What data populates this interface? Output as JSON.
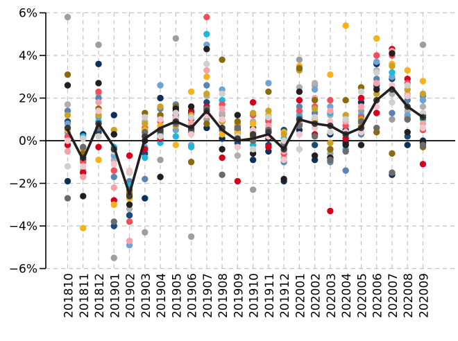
{
  "chart_data": {
    "type": "scatter",
    "title": "",
    "xlabel": "",
    "ylabel": "",
    "categories": [
      "201810",
      "201811",
      "201812",
      "201901",
      "201902",
      "201903",
      "201904",
      "201905",
      "201906",
      "201907",
      "201908",
      "201909",
      "201910",
      "201911",
      "201912",
      "202001",
      "202002",
      "202003",
      "202004",
      "202005",
      "202006",
      "202007",
      "202008",
      "202009"
    ],
    "ylim": [
      -6,
      6
    ],
    "yticks": [
      -6,
      -4,
      -2,
      0,
      2,
      4,
      6
    ],
    "ytick_labels": [
      "−6%",
      "−4%",
      "−2%",
      "0%",
      "2%",
      "4%",
      "6%"
    ],
    "grid": true,
    "mean_line": {
      "color": "#231f20",
      "values": [
        0.5,
        -0.9,
        0.8,
        -0.3,
        -2.5,
        0.1,
        0.6,
        0.9,
        0.6,
        1.4,
        0.5,
        0.0,
        0.1,
        0.3,
        -0.4,
        1.0,
        0.8,
        0.7,
        0.3,
        0.6,
        1.9,
        2.5,
        1.6,
        1.1
      ]
    },
    "point_series": [
      {
        "color": "#9e9e9e",
        "values": [
          5.8,
          -1.4,
          4.5,
          -5.5,
          -2.1,
          -4.3,
          -0.9,
          4.8,
          -4.5,
          1.0,
          1.2,
          0.4,
          -2.3,
          0.2,
          -0.3,
          3.8,
          2.6,
          -0.6,
          0.5,
          1.4,
          2.5,
          1.0,
          1.1,
          4.5
        ]
      },
      {
        "color": "#b0b0b0",
        "values": [
          1.7,
          -0.3,
          2.2,
          -0.9,
          -3.2,
          0.9,
          1.1,
          0.2,
          0.7,
          2.1,
          1.3,
          -0.7,
          0.9,
          0.6,
          -0.8,
          2.5,
          2.7,
          1.2,
          0.2,
          0.9,
          3.3,
          2.2,
          1.4,
          1.6
        ]
      },
      {
        "color": "#0d2f5c",
        "values": [
          -1.9,
          0.3,
          3.6,
          1.2,
          -2.0,
          -2.7,
          2.0,
          1.4,
          1.3,
          0.6,
          0.1,
          0.5,
          -0.9,
          -0.5,
          -1.9,
          0.5,
          -0.9,
          0.3,
          -0.1,
          1.8,
          3.6,
          -1.6,
          -0.2,
          0.0
        ]
      },
      {
        "color": "#1a4a7a",
        "values": [
          0.9,
          -0.9,
          0.4,
          -4.0,
          -3.5,
          -0.6,
          0.4,
          1.0,
          0.5,
          1.8,
          0.9,
          -0.1,
          0.6,
          -0.2,
          0.5,
          0.8,
          -0.2,
          -0.4,
          0.5,
          0.6,
          2.6,
          2.9,
          0.2,
          1.2
        ]
      },
      {
        "color": "#5b85b0",
        "values": [
          1.4,
          0.1,
          2.0,
          -1.7,
          -1.9,
          -1.8,
          1.5,
          1.7,
          0.8,
          2.6,
          0.5,
          0.3,
          0.2,
          1.0,
          -1.0,
          1.6,
          1.3,
          -1.0,
          -1.4,
          0.3,
          2.9,
          1.3,
          1.9,
          2.1
        ]
      },
      {
        "color": "#6fa3d4",
        "values": [
          0.8,
          -0.6,
          1.1,
          -0.7,
          -4.9,
          -0.3,
          2.6,
          0.5,
          -0.2,
          4.5,
          2.4,
          0.6,
          0.0,
          2.7,
          -0.5,
          1.2,
          2.4,
          1.6,
          0.3,
          1.2,
          3.7,
          3.0,
          1.2,
          1.9
        ]
      },
      {
        "color": "#1fb8d8",
        "values": [
          0.4,
          0.2,
          0.9,
          -0.3,
          -2.1,
          -0.8,
          -0.1,
          0.2,
          -0.3,
          5.0,
          1.9,
          0.1,
          -0.2,
          0.4,
          0.1,
          1.1,
          0.9,
          1.3,
          -0.4,
          0.8,
          4.8,
          3.2,
          1.0,
          1.0
        ]
      },
      {
        "color": "#d6001c",
        "values": [
          -0.2,
          -1.5,
          -0.3,
          -2.8,
          -0.7,
          -0.4,
          0.1,
          1.2,
          1.4,
          1.6,
          -0.8,
          -1.9,
          1.8,
          -0.3,
          -0.2,
          1.9,
          0.3,
          -3.3,
          0.1,
          2.0,
          1.3,
          4.3,
          2.9,
          -1.1
        ]
      },
      {
        "color": "#f04e5a",
        "values": [
          0.2,
          -1.0,
          2.3,
          -1.4,
          -3.8,
          0.6,
          0.9,
          1.5,
          1.0,
          5.8,
          1.7,
          0.7,
          1.2,
          0.9,
          -0.6,
          1.4,
          1.6,
          1.9,
          0.7,
          1.1,
          4.0,
          4.0,
          2.7,
          0.5
        ]
      },
      {
        "color": "#f7a1a9",
        "values": [
          -0.5,
          -1.7,
          1.8,
          -2.2,
          -4.7,
          0.3,
          0.6,
          1.1,
          0.8,
          3.3,
          1.5,
          0.3,
          0.4,
          0.7,
          -0.5,
          0.9,
          2.0,
          1.4,
          0.9,
          1.6,
          2.7,
          4.2,
          2.2,
          0.8
        ]
      },
      {
        "color": "#f6b21b",
        "values": [
          0.5,
          -4.1,
          -0.9,
          -3.0,
          -2.7,
          0.5,
          0.7,
          -0.2,
          2.3,
          3.0,
          0.3,
          0.4,
          0.8,
          1.2,
          0.4,
          3.5,
          1.0,
          3.1,
          5.4,
          0.7,
          4.8,
          3.6,
          3.3,
          2.8
        ]
      },
      {
        "color": "#c9a227",
        "values": [
          1.2,
          -0.4,
          1.2,
          0.5,
          -2.4,
          0.8,
          1.6,
          0.7,
          1.2,
          2.2,
          0.9,
          0.8,
          1.3,
          1.4,
          0.3,
          3.3,
          1.5,
          -0.1,
          1.2,
          1.0,
          2.2,
          3.5,
          2.4,
          2.2
        ]
      },
      {
        "color": "#8b6a0f",
        "values": [
          3.1,
          -0.6,
          1.5,
          0.3,
          -2.5,
          1.3,
          1.2,
          1.6,
          -1.0,
          0.8,
          3.8,
          0.9,
          0.2,
          2.3,
          -0.1,
          3.4,
          1.9,
          -0.4,
          1.9,
          2.5,
          0.4,
          -0.6,
          2.1,
          -0.3
        ]
      },
      {
        "color": "#231f20",
        "values": [
          2.6,
          -2.6,
          2.7,
          0.3,
          -3.0,
          0.0,
          -1.7,
          1.5,
          1.6,
          4.3,
          -0.4,
          1.2,
          -0.6,
          0.1,
          -1.8,
          2.3,
          -0.7,
          -0.8,
          -0.2,
          -0.2,
          2.4,
          4.1,
          0.4,
          -0.1
        ]
      },
      {
        "color": "#6b6b6b",
        "values": [
          -2.7,
          -0.3,
          0.6,
          -3.8,
          -2.3,
          0.4,
          0.3,
          0.8,
          0.4,
          1.5,
          -1.6,
          0.6,
          0.0,
          0.5,
          -0.2,
          0.7,
          0.2,
          -0.9,
          -0.5,
          0.9,
          0.6,
          -1.5,
          1.0,
          -0.2
        ]
      },
      {
        "color": "#d0d0d0",
        "values": [
          -1.2,
          0.1,
          0.2,
          -0.5,
          -1.5,
          1.1,
          0.2,
          1.3,
          1.1,
          3.6,
          2.2,
          0.2,
          -0.4,
          1.1,
          0.0,
          -0.4,
          1.1,
          0.4,
          1.0,
          2.3,
          3.2,
          1.8,
          2.6,
          1.3
        ]
      },
      {
        "color": "#f3c6cc",
        "values": [
          0.0,
          -1.2,
          1.4,
          -1.1,
          -1.4,
          0.2,
          1.0,
          1.0,
          0.3,
          1.2,
          1.0,
          -0.3,
          0.5,
          0.2,
          -0.9,
          0.3,
          0.6,
          0.9,
          0.4,
          0.4,
          1.6,
          2.6,
          2.1,
          0.6
        ]
      },
      {
        "color": "#3c3c3c",
        "values": [
          0.6,
          -0.8,
          0.8,
          -0.4,
          -2.6,
          0.2,
          0.5,
          0.9,
          0.6,
          1.4,
          0.6,
          0.1,
          0.3,
          0.4,
          -0.4,
          1.0,
          0.8,
          0.7,
          0.3,
          0.6,
          1.9,
          2.4,
          1.6,
          1.1
        ]
      }
    ]
  }
}
